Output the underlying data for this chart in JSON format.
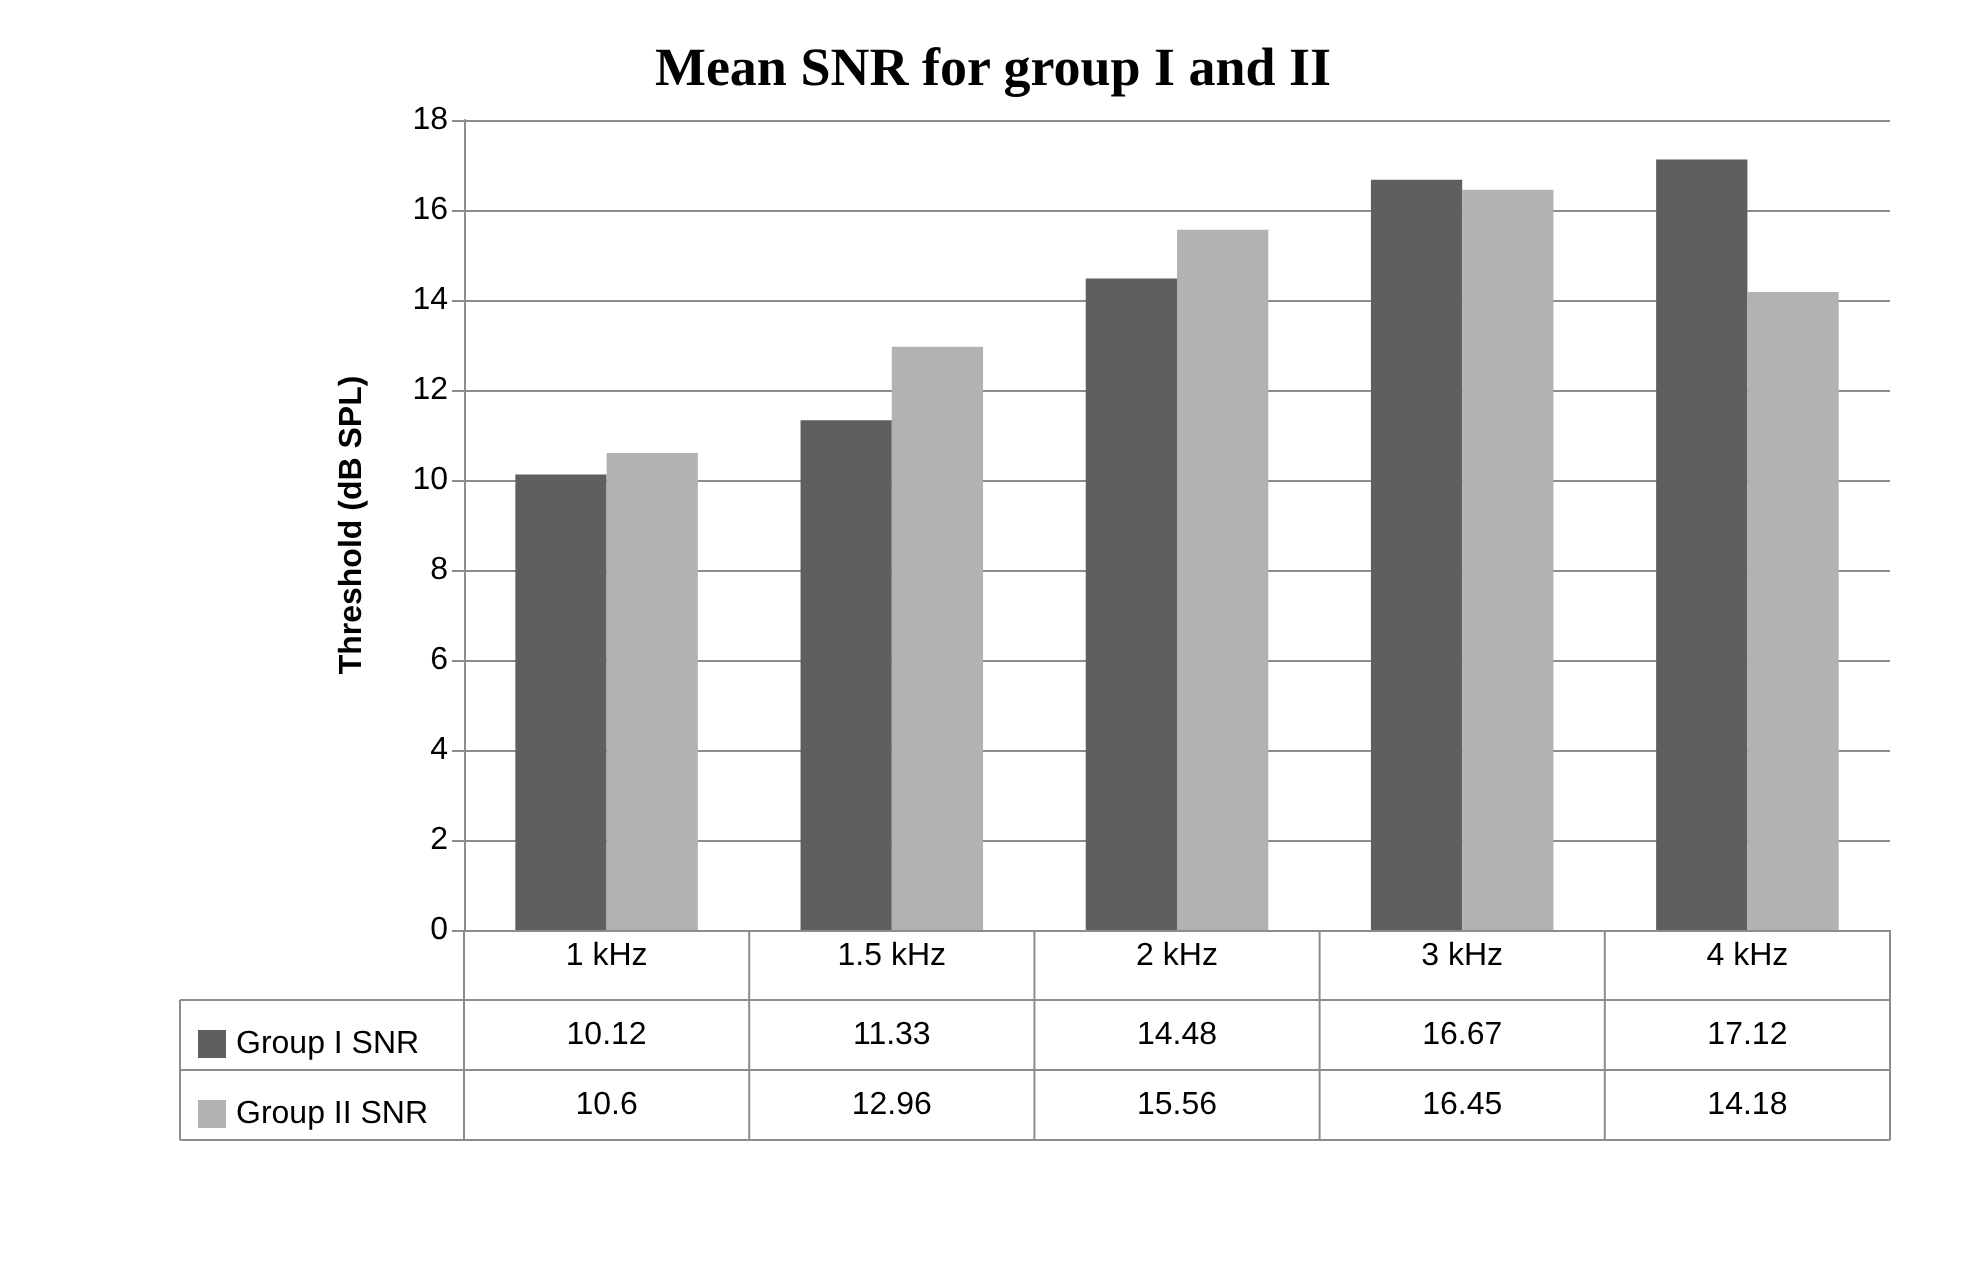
{
  "chart_data": {
    "type": "bar",
    "title": "Mean SNR for group I and II",
    "ylabel": "Threshold (dB SPL)",
    "categories": [
      "1 kHz",
      "1.5 kHz",
      "2 kHz",
      "3 kHz",
      "4 kHz"
    ],
    "series": [
      {
        "name": "Group I SNR",
        "color": "#5f5f5f",
        "values": [
          10.12,
          11.33,
          14.48,
          16.67,
          17.12
        ]
      },
      {
        "name": "Group II SNR",
        "color": "#b2b2b2",
        "values": [
          10.6,
          12.96,
          15.56,
          16.45,
          14.18
        ]
      }
    ],
    "ylim": [
      0,
      18
    ],
    "yticks": [
      0,
      2,
      4,
      6,
      8,
      10,
      12,
      14,
      16,
      18
    ],
    "grid": "y",
    "legend": "bottom",
    "data_labels": true
  }
}
